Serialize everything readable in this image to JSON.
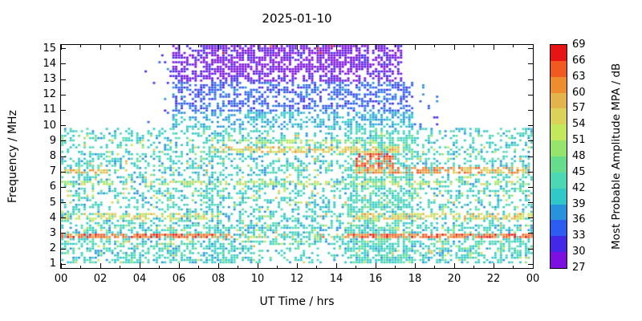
{
  "chart_data": {
    "type": "heatmap",
    "title": "2025-01-10",
    "xlabel": "UT Time / hrs",
    "ylabel": "Frequency / MHz",
    "xlim": [
      0,
      24
    ],
    "ylim": [
      0.75,
      15.25
    ],
    "grid": false,
    "legend_position": "right-colorbar",
    "xticks": {
      "values": [
        0,
        2,
        4,
        6,
        8,
        10,
        12,
        14,
        16,
        18,
        20,
        22,
        24
      ],
      "labels": [
        "00",
        "02",
        "04",
        "06",
        "08",
        "10",
        "12",
        "14",
        "16",
        "18",
        "20",
        "22",
        "00"
      ]
    },
    "xticks_minor": [
      1,
      3,
      5,
      7,
      9,
      11,
      13,
      15,
      17,
      19,
      21,
      23
    ],
    "yticks": {
      "values": [
        1,
        2,
        3,
        4,
        5,
        6,
        7,
        8,
        9,
        10,
        11,
        12,
        13,
        14,
        15
      ],
      "labels": [
        "1",
        "2",
        "3",
        "4",
        "5",
        "6",
        "7",
        "8",
        "9",
        "10",
        "11",
        "12",
        "13",
        "14",
        "15"
      ]
    },
    "colorbar": {
      "label": "Most Probable Amplitude MPA / dB",
      "min": 27,
      "max": 69,
      "step": 3,
      "tick_labels": [
        "27",
        "30",
        "33",
        "36",
        "39",
        "42",
        "45",
        "48",
        "51",
        "54",
        "57",
        "60",
        "63",
        "66",
        "69"
      ],
      "segment_colors": [
        "#7b10e0",
        "#4428e8",
        "#2d5cf0",
        "#2892dc",
        "#30c8c8",
        "#4cd8b4",
        "#66dc8c",
        "#96e46e",
        "#c4e85c",
        "#dcd25a",
        "#e4b44c",
        "#ee8c30",
        "#f05a20",
        "#e61414"
      ]
    },
    "seed": 20250110,
    "bands": [
      {
        "name": "base-noise",
        "t": [
          0,
          24
        ],
        "f": [
          1.0,
          9.8
        ],
        "density": 0.32,
        "amp": 41,
        "spread": 3
      },
      {
        "name": "low-freq-extra",
        "t": [
          0,
          24
        ],
        "f": [
          1.0,
          3.6
        ],
        "density": 0.25,
        "amp": 42,
        "spread": 4
      },
      {
        "name": "warm-sprinkle",
        "t": [
          0,
          24
        ],
        "f": [
          1.0,
          9.5
        ],
        "density": 0.05,
        "amp": 52,
        "spread": 6
      },
      {
        "name": "evening-dense",
        "t": [
          14.6,
          18.0
        ],
        "f": [
          1.0,
          9.8
        ],
        "density": 0.35,
        "amp": 43,
        "spread": 4
      },
      {
        "name": "morning-column",
        "t": [
          7.3,
          8.3
        ],
        "f": [
          1.0,
          9.8
        ],
        "density": 0.3,
        "amp": 41,
        "spread": 3
      },
      {
        "name": "midday-low-gap",
        "t": [
          9.7,
          14.4
        ],
        "f": [
          1.0,
          2.25
        ],
        "density": 0.55,
        "amp": null,
        "spread": 0
      },
      {
        "name": "day-cyan-10mhz",
        "t": [
          5.6,
          18.0
        ],
        "f": [
          9.8,
          10.9
        ],
        "density": 0.45,
        "amp": 39,
        "spread": 2.5
      },
      {
        "name": "day-blue-11-13mhz",
        "t": [
          5.6,
          17.9
        ],
        "f": [
          10.9,
          12.8
        ],
        "density": 0.5,
        "amp": 34.5,
        "spread": 2.5
      },
      {
        "name": "day-violet-13-15mhz",
        "t": [
          5.6,
          17.4
        ],
        "f": [
          12.8,
          15.25
        ],
        "density": 0.55,
        "amp": 29.5,
        "spread": 2.5
      },
      {
        "name": "violet-core",
        "t": [
          7.6,
          15.2
        ],
        "f": [
          13.4,
          15.25
        ],
        "density": 0.35,
        "amp": 28.5,
        "spread": 1.5
      },
      {
        "name": "pre-dawn-sparse-high",
        "t": [
          4.3,
          5.6
        ],
        "f": [
          9.8,
          15.0
        ],
        "density": 0.06,
        "amp": 33,
        "spread": 4
      },
      {
        "name": "dusk-sparse-high",
        "t": [
          18.0,
          19.2
        ],
        "f": [
          9.8,
          13.0
        ],
        "density": 0.07,
        "amp": 35,
        "spread": 4
      },
      {
        "name": "streak-2p8-night-am",
        "t": [
          0,
          8.6
        ],
        "f": [
          2.65,
          3.05
        ],
        "density": 0.75,
        "amp": 64,
        "spread": 4
      },
      {
        "name": "streak-2p8-eve",
        "t": [
          14.4,
          24
        ],
        "f": [
          2.65,
          3.05
        ],
        "density": 0.75,
        "amp": 64,
        "spread": 4
      },
      {
        "name": "streak-2p8-midday",
        "t": [
          8.6,
          14.4
        ],
        "f": [
          2.65,
          3.05
        ],
        "density": 0.25,
        "amp": 58,
        "spread": 6
      },
      {
        "name": "streak-4mhz-am",
        "t": [
          0,
          8.2
        ],
        "f": [
          3.9,
          4.3
        ],
        "density": 0.55,
        "amp": 54,
        "spread": 5
      },
      {
        "name": "streak-4mhz-eve",
        "t": [
          14.8,
          24
        ],
        "f": [
          3.9,
          4.3
        ],
        "density": 0.6,
        "amp": 56,
        "spread": 5
      },
      {
        "name": "streak-6p3",
        "t": [
          0,
          24
        ],
        "f": [
          6.1,
          6.5
        ],
        "density": 0.4,
        "amp": 52,
        "spread": 5
      },
      {
        "name": "streak-7mhz-night",
        "t": [
          0,
          2.6
        ],
        "f": [
          6.85,
          7.25
        ],
        "density": 0.6,
        "amp": 58,
        "spread": 5
      },
      {
        "name": "streak-7mhz-eve",
        "t": [
          15.0,
          24
        ],
        "f": [
          6.85,
          7.3
        ],
        "density": 0.65,
        "amp": 60,
        "spread": 5
      },
      {
        "name": "streak-8p4-day",
        "t": [
          7.6,
          17.2
        ],
        "f": [
          8.2,
          8.6
        ],
        "density": 0.55,
        "amp": 56,
        "spread": 5
      },
      {
        "name": "streak-9mhz-day",
        "t": [
          8.0,
          16.2
        ],
        "f": [
          8.85,
          9.15
        ],
        "density": 0.45,
        "amp": 50,
        "spread": 4
      },
      {
        "name": "red-cluster-16ut",
        "t": [
          15.0,
          16.9
        ],
        "f": [
          7.35,
          8.25
        ],
        "density": 0.6,
        "amp": 65,
        "spread": 3
      },
      {
        "name": "top-red-specks",
        "t": [
          8.0,
          14.5
        ],
        "f": [
          14.5,
          15.2
        ],
        "density": 0.02,
        "amp": 67,
        "spread": 2
      }
    ]
  }
}
